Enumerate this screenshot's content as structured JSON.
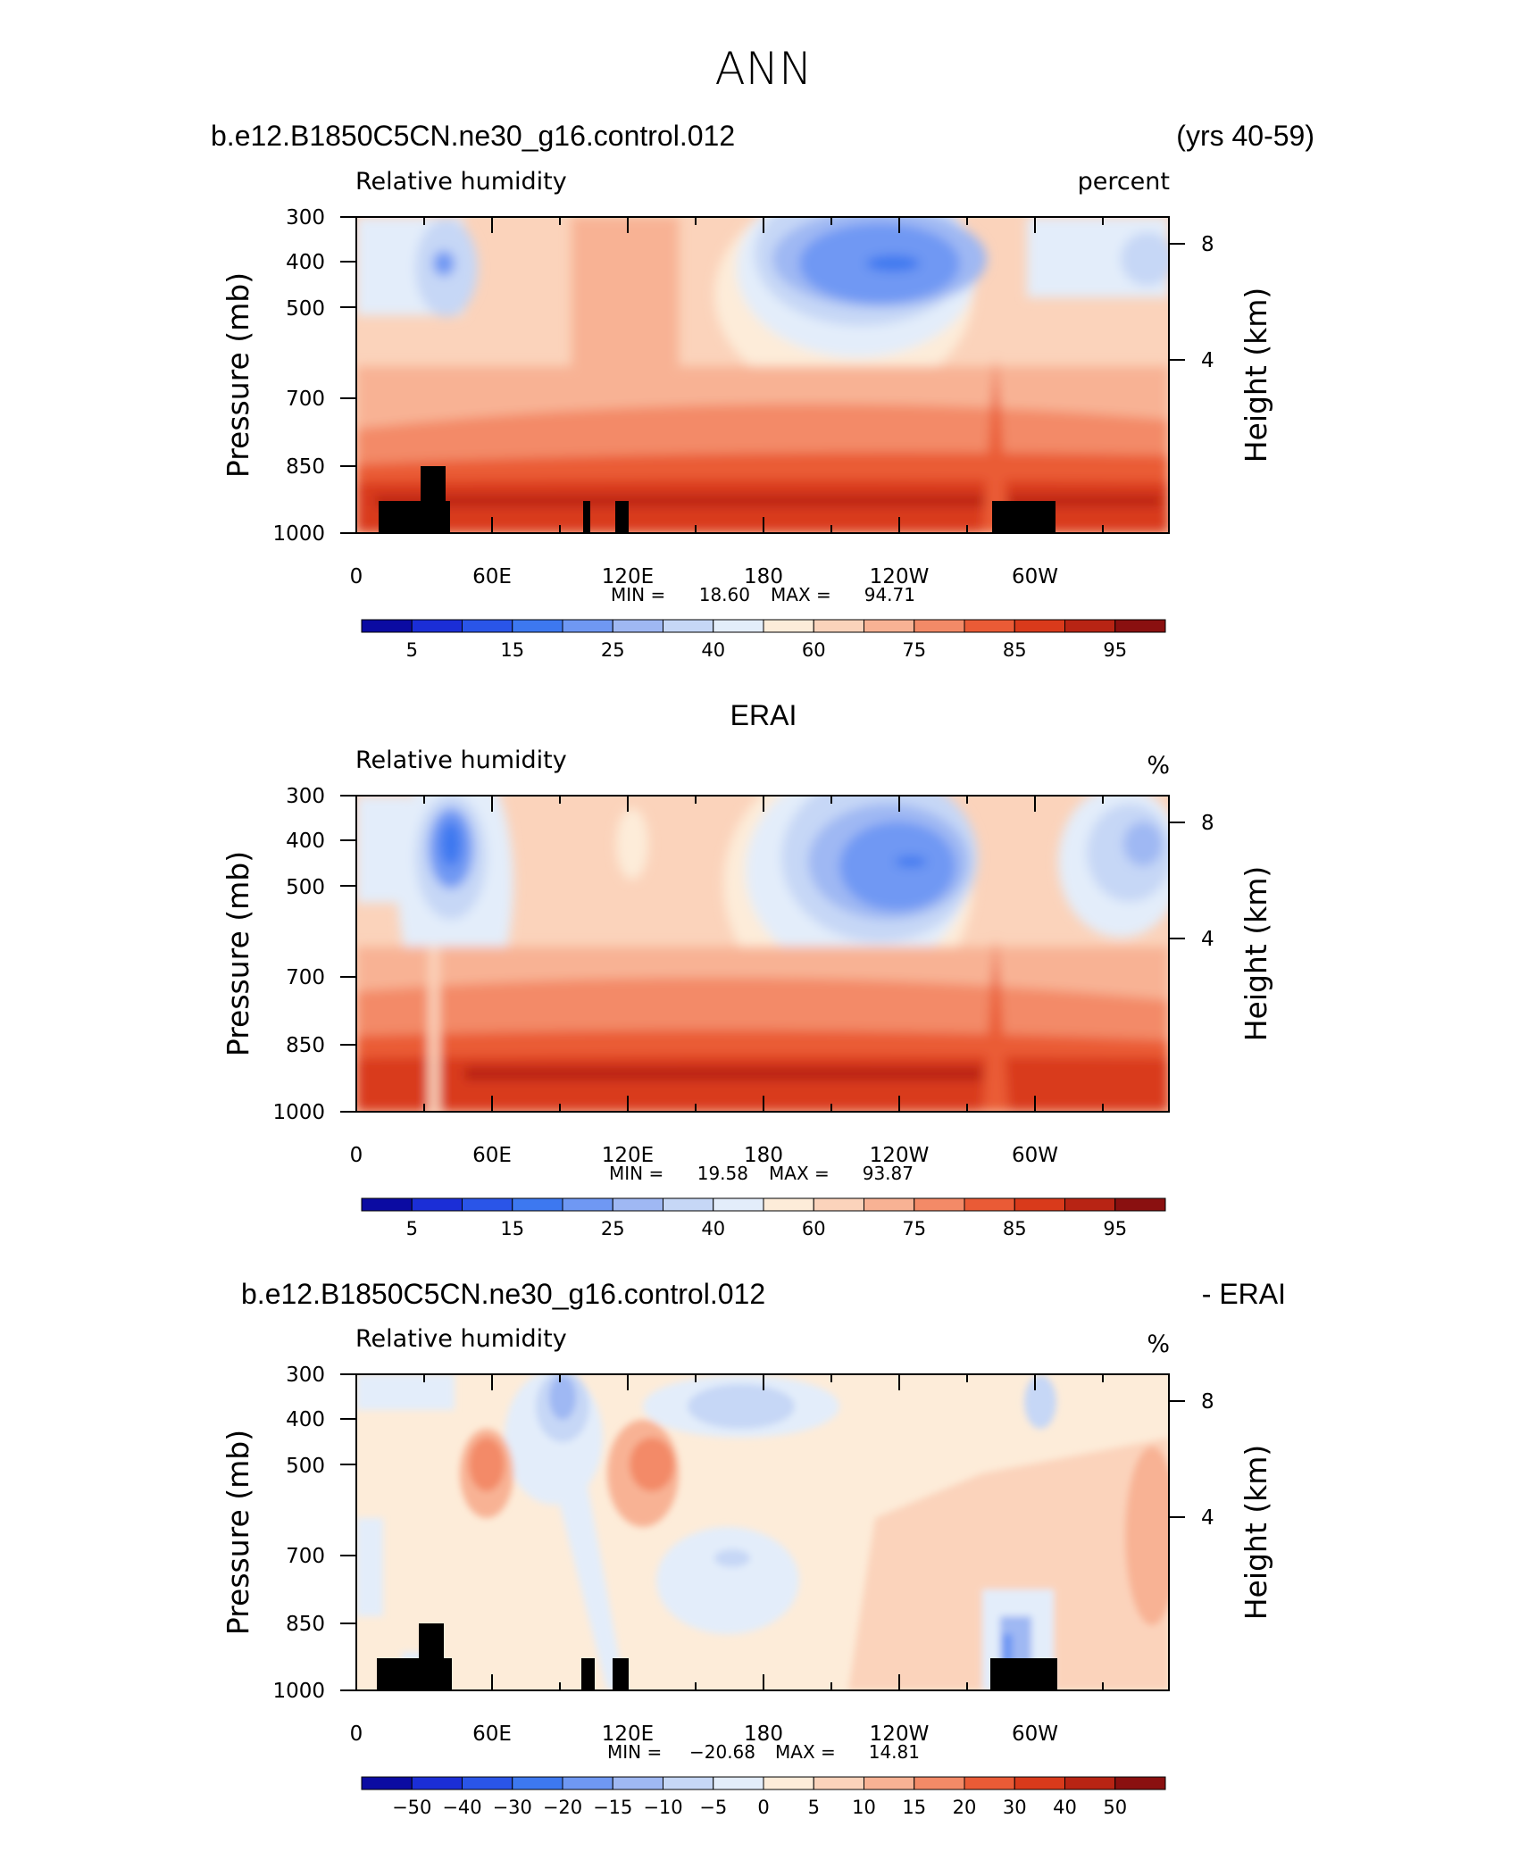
{
  "figure_title": "ANN",
  "palettes": {
    "rh": [
      "#0b0ba2",
      "#1b2ed6",
      "#2a55e8",
      "#3d78f0",
      "#6f98f3",
      "#9fb8f3",
      "#c6d7f6",
      "#e3edfa",
      "#fdecd9",
      "#fbd3bb",
      "#f8b294",
      "#f38a67",
      "#ea5b36",
      "#d93a1b",
      "#b82414",
      "#8a1010"
    ],
    "diff": [
      "#0b0ba2",
      "#1b2ed6",
      "#2a55e8",
      "#3d78f0",
      "#6f98f3",
      "#9fb8f3",
      "#c6d7f6",
      "#e3edfa",
      "#fdecd9",
      "#fbd3bb",
      "#f8b294",
      "#f38a67",
      "#ea5b36",
      "#d93a1b",
      "#b82414",
      "#8a1010"
    ]
  },
  "chart_data": [
    {
      "type": "heatmap",
      "left_title": "b.e12.B1850C5CN.ne30_g16.control.012",
      "right_title": "(yrs 40-59)",
      "variable": "Relative humidity",
      "units": "percent",
      "ylabel": "Pressure (mb)",
      "ylabel_right": "Height (km)",
      "yticks": [
        "300",
        "400",
        "500",
        "700",
        "850",
        "1000"
      ],
      "yticks_right": [
        "8",
        "4"
      ],
      "xticks": [
        "0",
        "60E",
        "120E",
        "180",
        "120W",
        "60W"
      ],
      "stats": {
        "min_label": "MIN =",
        "min": "18.60",
        "max_label": "MAX =",
        "max": "94.71"
      },
      "colorbar_labels": [
        "5",
        "15",
        "25",
        "40",
        "60",
        "75",
        "85",
        "95"
      ],
      "colorbar_palette": "rh",
      "topography": true
    },
    {
      "type": "heatmap",
      "center_title": "ERAI",
      "variable": "Relative humidity",
      "units": "%",
      "ylabel": "Pressure (mb)",
      "ylabel_right": "Height (km)",
      "yticks": [
        "300",
        "400",
        "500",
        "700",
        "850",
        "1000"
      ],
      "yticks_right": [
        "8",
        "4"
      ],
      "xticks": [
        "0",
        "60E",
        "120E",
        "180",
        "120W",
        "60W"
      ],
      "stats": {
        "min_label": "MIN =",
        "min": "19.58",
        "max_label": "MAX =",
        "max": "93.87"
      },
      "colorbar_labels": [
        "5",
        "15",
        "25",
        "40",
        "60",
        "75",
        "85",
        "95"
      ],
      "colorbar_palette": "rh",
      "topography": false
    },
    {
      "type": "heatmap",
      "left_title": "b.e12.B1850C5CN.ne30_g16.control.012",
      "right_title": "- ERAI",
      "variable": "Relative humidity",
      "units": "%",
      "ylabel": "Pressure (mb)",
      "ylabel_right": "Height (km)",
      "yticks": [
        "300",
        "400",
        "500",
        "700",
        "850",
        "1000"
      ],
      "yticks_right": [
        "8",
        "4"
      ],
      "xticks": [
        "0",
        "60E",
        "120E",
        "180",
        "120W",
        "60W"
      ],
      "stats": {
        "min_label": "MIN =",
        "min": "−20.68",
        "max_label": "MAX =",
        "max": "14.81"
      },
      "colorbar_labels": [
        "−50",
        "−40",
        "−30",
        "−20",
        "−15",
        "−10",
        "−5",
        "0",
        "5",
        "10",
        "15",
        "20",
        "30",
        "40",
        "50"
      ],
      "colorbar_palette": "diff",
      "topography": true
    }
  ]
}
